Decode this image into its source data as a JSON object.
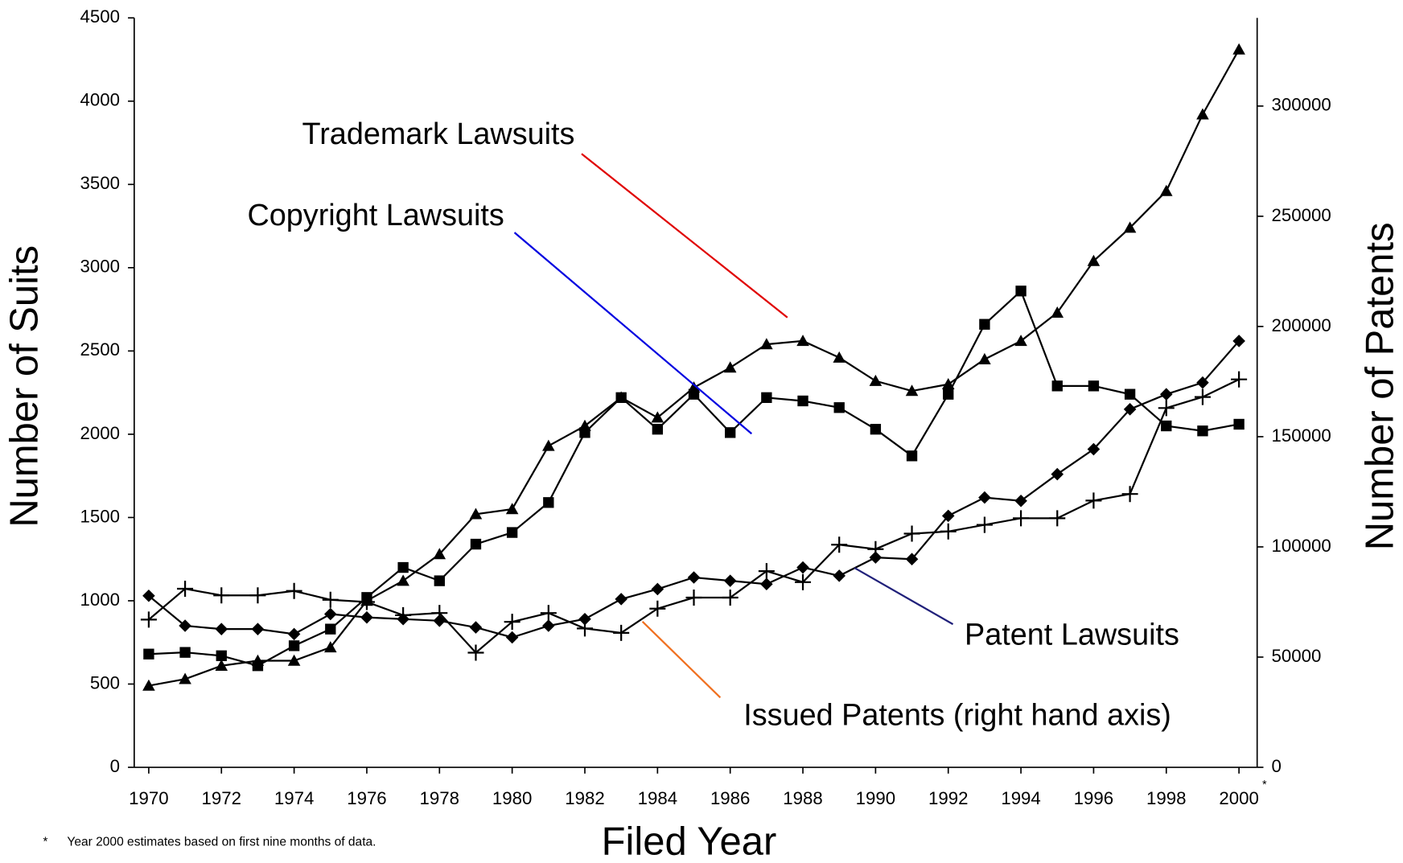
{
  "chart_data": {
    "type": "line",
    "y_label": "Number of Suits",
    "y2_label": "Number of Patents",
    "x_label": "Filed Year",
    "footnote_marker": "*",
    "footnote": "Year 2000 estimates based on first nine months of data.",
    "x": [
      1970,
      1971,
      1972,
      1973,
      1974,
      1975,
      1976,
      1977,
      1978,
      1979,
      1980,
      1981,
      1982,
      1983,
      1984,
      1985,
      1986,
      1987,
      1988,
      1989,
      1990,
      1991,
      1992,
      1993,
      1994,
      1995,
      1996,
      1997,
      1998,
      1999,
      2000
    ],
    "xlim": [
      1969.6,
      2000.5
    ],
    "xticks": [
      1970,
      1972,
      1974,
      1976,
      1978,
      1980,
      1982,
      1984,
      1986,
      1988,
      1990,
      1992,
      1994,
      1996,
      1998,
      2000
    ],
    "ylim": [
      0,
      4500
    ],
    "yticks": [
      0,
      500,
      1000,
      1500,
      2000,
      2500,
      3000,
      3500,
      4000,
      4500
    ],
    "y2lim": [
      0,
      340000
    ],
    "y2ticks": [
      0,
      50000,
      100000,
      150000,
      200000,
      250000,
      300000
    ],
    "series": [
      {
        "name": "Trademark Lawsuits",
        "color": "#000000",
        "marker": "triangle",
        "values": [
          490,
          530,
          610,
          640,
          640,
          720,
          1000,
          1120,
          1280,
          1520,
          1550,
          1930,
          2050,
          2220,
          2100,
          2280,
          2400,
          2540,
          2560,
          2460,
          2320,
          2260,
          2300,
          2450,
          2560,
          2730,
          3040,
          3240,
          3460,
          3920,
          4310
        ]
      },
      {
        "name": "Copyright Lawsuits",
        "color": "#000000",
        "marker": "square",
        "values": [
          680,
          690,
          670,
          610,
          730,
          830,
          1020,
          1200,
          1120,
          1340,
          1410,
          1590,
          2010,
          2220,
          2030,
          2240,
          2010,
          2220,
          2200,
          2160,
          2030,
          1870,
          2240,
          2660,
          2860,
          2290,
          2290,
          2240,
          2050,
          2020,
          2060
        ]
      },
      {
        "name": "Patent Lawsuits",
        "color": "#000000",
        "marker": "diamond",
        "values": [
          1030,
          850,
          830,
          830,
          800,
          920,
          900,
          890,
          880,
          840,
          780,
          850,
          890,
          1010,
          1070,
          1140,
          1120,
          1100,
          1200,
          1150,
          1260,
          1250,
          1510,
          1620,
          1600,
          1760,
          1910,
          2150,
          2240,
          2310,
          2560
        ]
      },
      {
        "name": "Issued Patents (right hand axis)",
        "color": "#000000",
        "marker": "plus",
        "axis": "y2",
        "values": [
          67000,
          81000,
          78000,
          78000,
          80000,
          76000,
          75000,
          69000,
          70000,
          52000,
          66000,
          70000,
          63000,
          61000,
          72000,
          77000,
          77000,
          89000,
          84000,
          101000,
          99000,
          106000,
          107000,
          110000,
          113000,
          113000,
          121000,
          124000,
          163000,
          168000,
          176000
        ]
      }
    ],
    "annotation_colors": [
      "#e00000",
      "#0000e0",
      "#20207a",
      "#f07020"
    ]
  }
}
